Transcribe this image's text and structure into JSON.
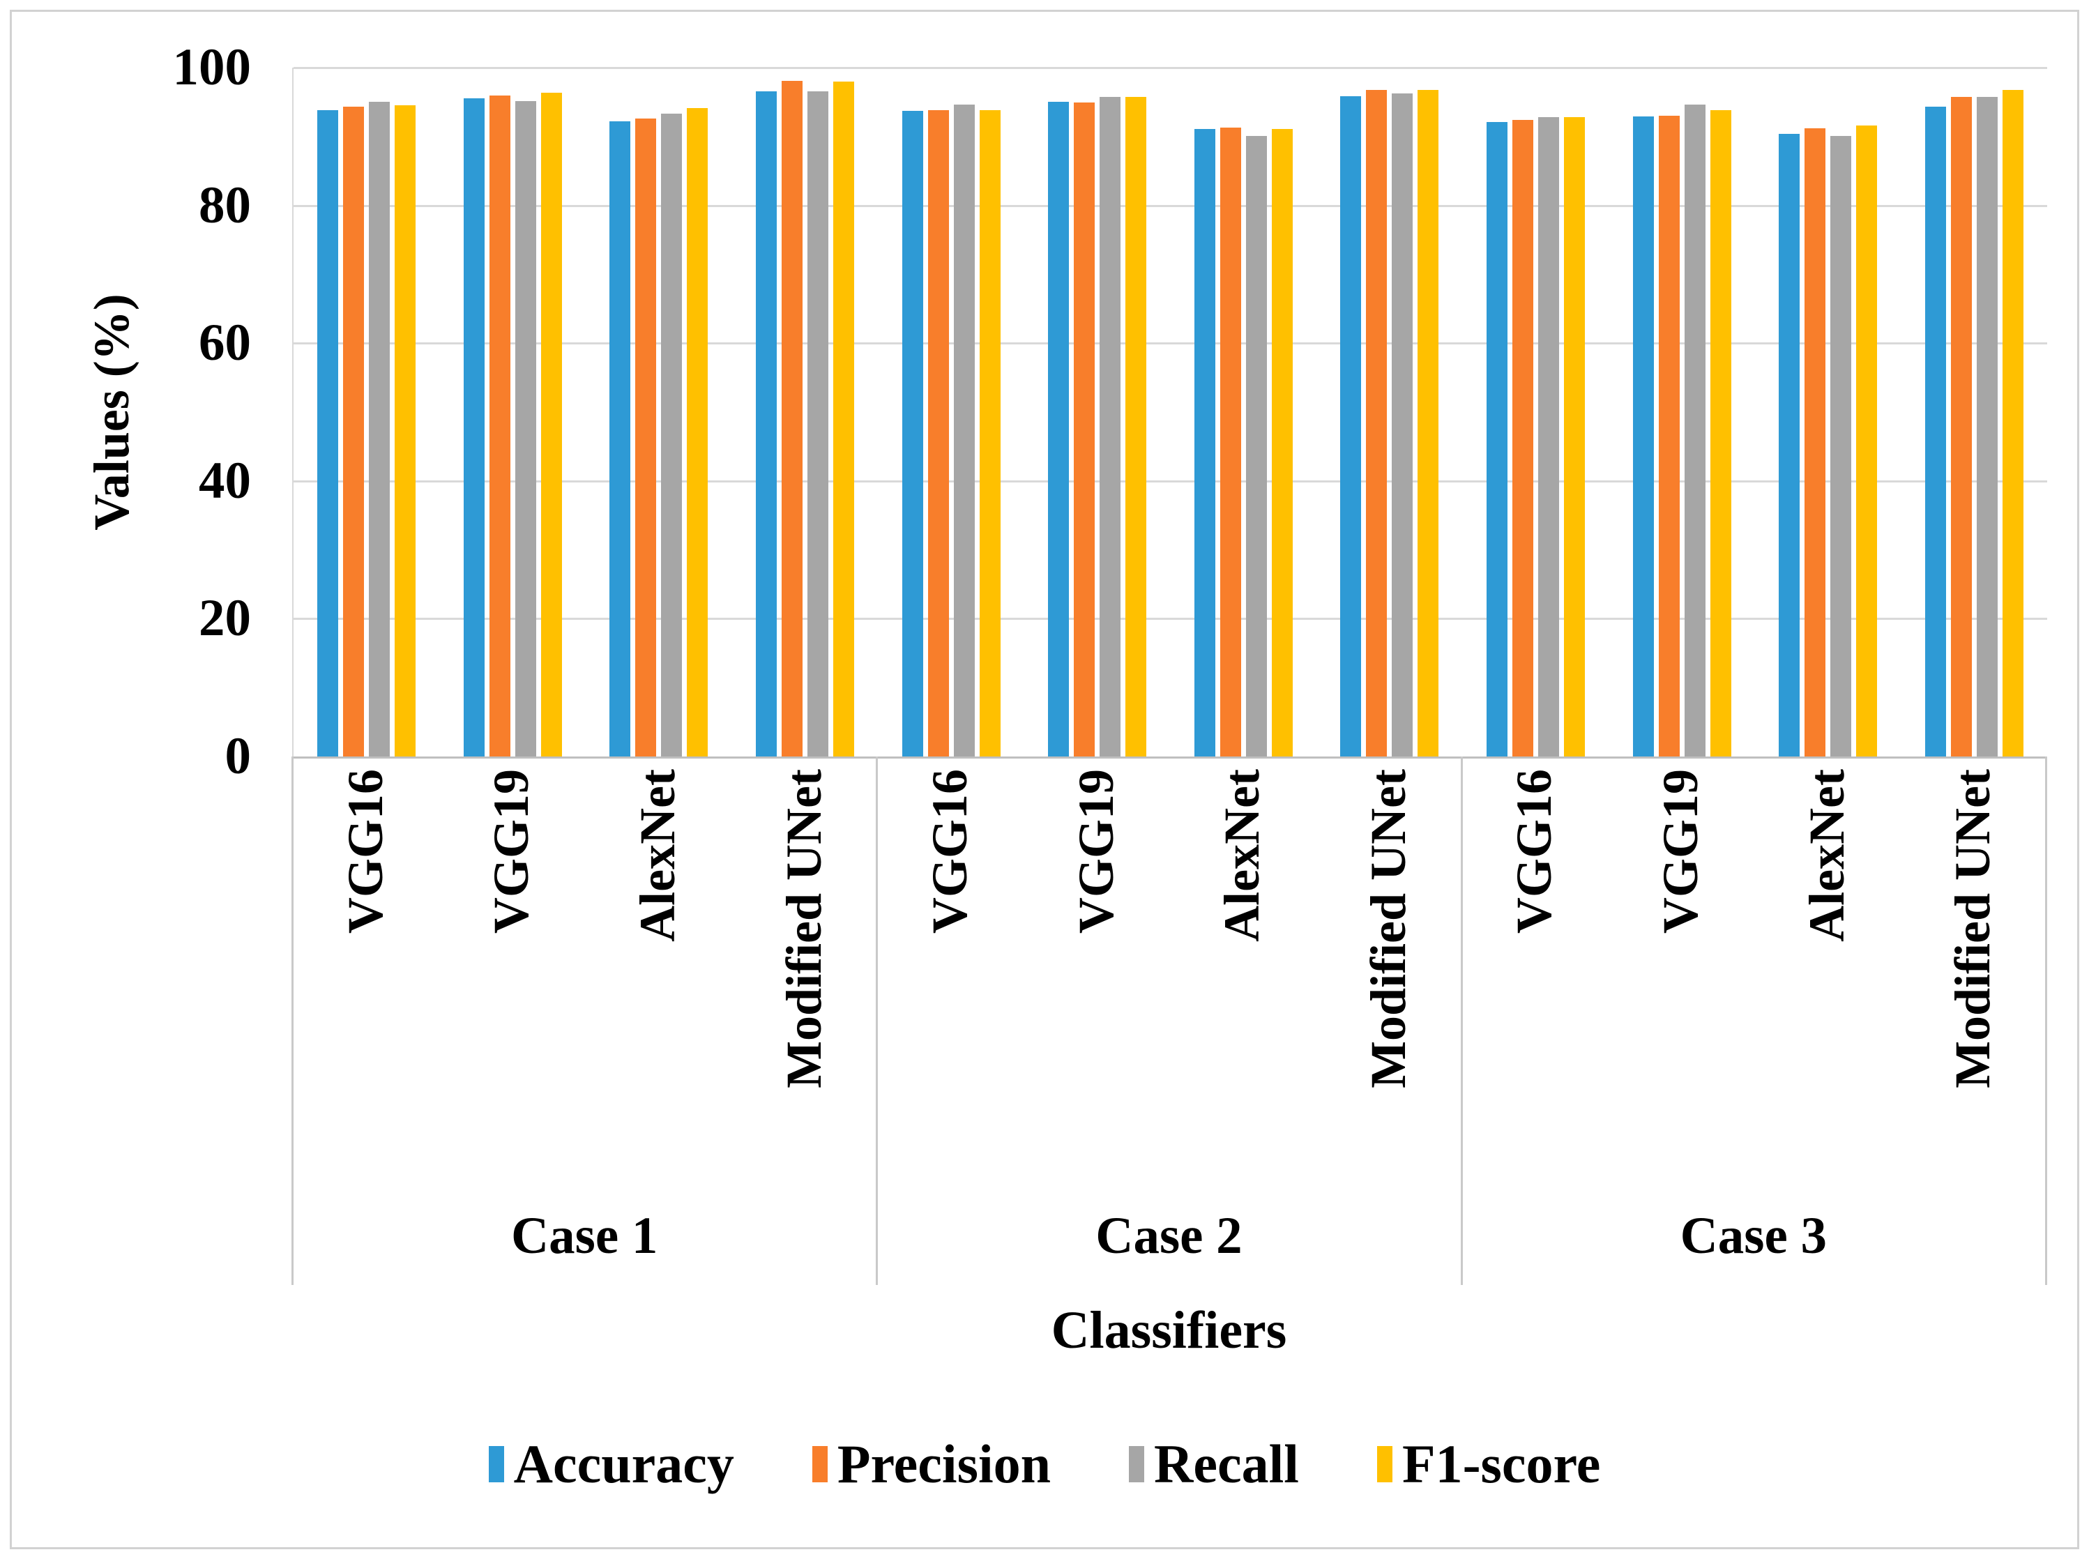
{
  "chart_data": {
    "type": "bar",
    "title": "",
    "xlabel": "Classifiers",
    "ylabel": "Values (%)",
    "ylim": [
      0,
      100
    ],
    "yticks": [
      0,
      20,
      40,
      60,
      80,
      100
    ],
    "grid": "horizontal-at-labeled-ticks",
    "legend_position": "bottom-center",
    "cases": [
      "Case 1",
      "Case 2",
      "Case 3"
    ],
    "group_labels": [
      "VGG16",
      "VGG19",
      "AlexNet",
      "Modified UNet"
    ],
    "categories": [
      "Case 1 VGG16",
      "Case 1 VGG19",
      "Case 1 AlexNet",
      "Case 1 Modified UNet",
      "Case 2 VGG16",
      "Case 2 VGG19",
      "Case 2 AlexNet",
      "Case 2 Modified UNet",
      "Case 3 VGG16",
      "Case 3 VGG19",
      "Case 3 AlexNet",
      "Case 3 Modified UNet"
    ],
    "series": [
      {
        "name": "Accuracy",
        "color": "#2E9AD5",
        "values": [
          93.8,
          95.5,
          92.2,
          96.6,
          93.7,
          95.0,
          91.1,
          95.9,
          92.1,
          92.9,
          90.4,
          94.3
        ]
      },
      {
        "name": "Precision",
        "color": "#F87E2B",
        "values": [
          94.3,
          96.0,
          92.6,
          98.1,
          93.8,
          94.9,
          91.3,
          96.8,
          92.4,
          93.0,
          91.2,
          95.8
        ]
      },
      {
        "name": "Recall",
        "color": "#A6A6A6",
        "values": [
          95.0,
          95.1,
          93.3,
          96.6,
          94.6,
          95.7,
          90.1,
          96.3,
          92.8,
          94.6,
          90.1,
          95.8
        ]
      },
      {
        "name": "F1-score",
        "color": "#FFC000",
        "values": [
          94.5,
          96.4,
          94.1,
          98.0,
          93.8,
          95.7,
          91.1,
          96.8,
          92.8,
          93.8,
          91.6,
          96.8
        ]
      }
    ],
    "axis_colors": {
      "gridline": "#d9d9d9",
      "axis_line": "#bfbfbf",
      "separator": "#c9c9c9"
    }
  }
}
